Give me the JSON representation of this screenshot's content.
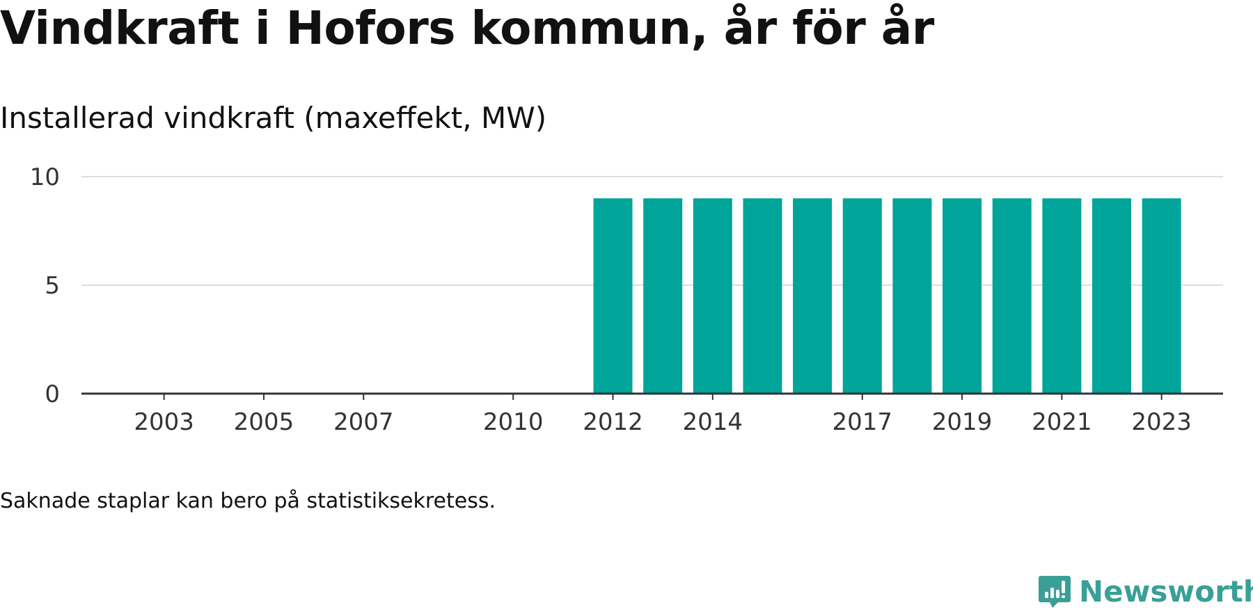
{
  "title": "Vindkraft i Hofors kommun, år för år",
  "subtitle": "Installerad vindkraft (maxeffekt, MW)",
  "footnote": "Saknade staplar kan bero på statistiksekretess.",
  "brand": {
    "name": "Newsworthy",
    "color": "#3a9f97"
  },
  "chart_data": {
    "type": "bar",
    "title": "Vindkraft i Hofors kommun, år för år",
    "subtitle": "Installerad vindkraft (maxeffekt, MW)",
    "xlabel": "",
    "ylabel": "",
    "categories": [
      "2002",
      "2003",
      "2004",
      "2005",
      "2006",
      "2007",
      "2008",
      "2009",
      "2010",
      "2011",
      "2012",
      "2013",
      "2014",
      "2015",
      "2016",
      "2017",
      "2018",
      "2019",
      "2020",
      "2021",
      "2022",
      "2023",
      "2024"
    ],
    "values": [
      null,
      null,
      null,
      null,
      null,
      null,
      null,
      null,
      null,
      null,
      9,
      9,
      9,
      9,
      9,
      9,
      9,
      9,
      9,
      9,
      9,
      9,
      null
    ],
    "x_tick_labels": [
      "2003",
      "2005",
      "2007",
      "2010",
      "2012",
      "2014",
      "2017",
      "2019",
      "2021",
      "2023"
    ],
    "y_ticks": [
      0,
      5,
      10
    ],
    "ylim": [
      0,
      10
    ],
    "grid": true,
    "bar_color": "#00a499",
    "grid_color": "#dddddd",
    "axis_color": "#333333"
  }
}
